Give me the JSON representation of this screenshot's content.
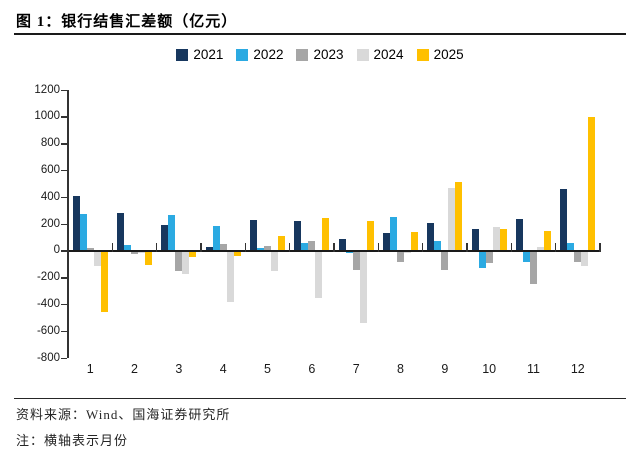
{
  "page": {
    "title": "图 1：银行结售汇差额（亿元）"
  },
  "footer": {
    "source": "资料来源：Wind、国海证券研究所",
    "note": "注：横轴表示月份"
  },
  "chart_data": {
    "type": "bar",
    "title": "银行结售汇差额（亿元）",
    "xlabel": "月份",
    "ylabel": "亿元",
    "categories": [
      "1",
      "2",
      "3",
      "4",
      "5",
      "6",
      "7",
      "8",
      "9",
      "10",
      "11",
      "12"
    ],
    "series": [
      {
        "name": "2021",
        "color": "#17375E",
        "values": [
          410,
          280,
          195,
          30,
          230,
          220,
          90,
          135,
          205,
          160,
          240,
          460
        ]
      },
      {
        "name": "2022",
        "color": "#2BAAE2",
        "values": [
          275,
          40,
          265,
          185,
          20,
          55,
          -20,
          255,
          75,
          -130,
          -80,
          60
        ]
      },
      {
        "name": "2023",
        "color": "#A6A6A6",
        "values": [
          20,
          -25,
          -150,
          50,
          35,
          75,
          -140,
          -85,
          -140,
          -90,
          -250,
          -80
        ]
      },
      {
        "name": "2024",
        "color": "#D9D9D9",
        "values": [
          -110,
          -15,
          -175,
          -380,
          -150,
          -350,
          -540,
          -15,
          470,
          175,
          30,
          -110
        ]
      },
      {
        "name": "2025",
        "color": "#FFC000",
        "values": [
          -455,
          -105,
          -45,
          -40,
          110,
          245,
          220,
          140,
          510,
          165,
          150,
          1000
        ]
      }
    ],
    "ylim": [
      -800,
      1200
    ],
    "ytick_step": 200,
    "yticks": [
      "1200",
      "1000",
      "800",
      "600",
      "400",
      "200",
      "0",
      "-200",
      "-400",
      "-600",
      "-800"
    ],
    "grid": false,
    "legend_position": "top"
  }
}
